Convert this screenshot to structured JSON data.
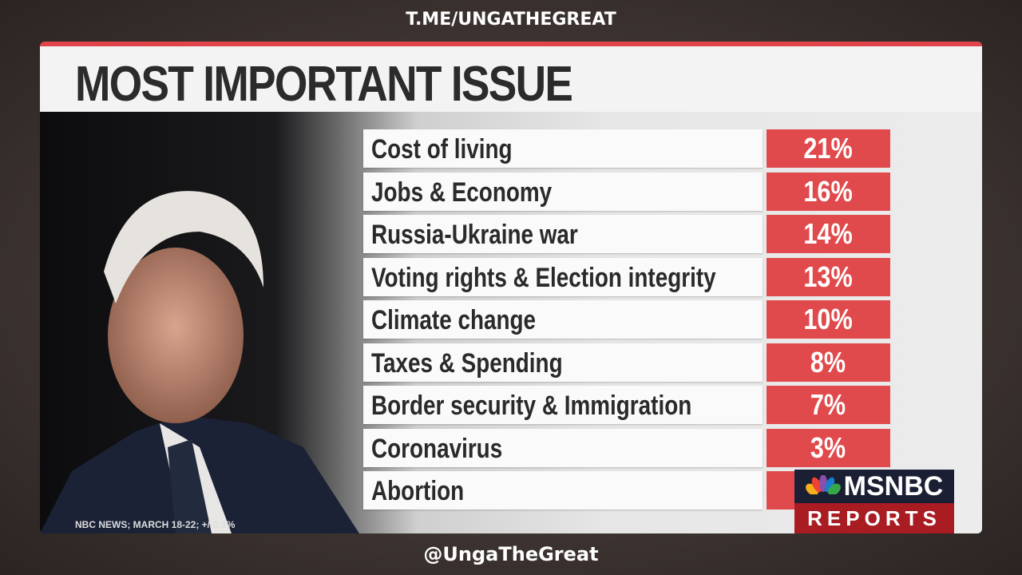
{
  "watermark_top": "T.ME/UNGATHEGREAT",
  "watermark_bottom": "@UngaTheGreat",
  "source": "NBC NEWS; MARCH 18-22; +/-3.1%",
  "logo": {
    "brand": "MSNBC",
    "show": "REPORTS"
  },
  "colors": {
    "accent": "#e04a4c",
    "logo_top": "#1a1f33",
    "logo_bottom": "#a81c22"
  },
  "chart_data": {
    "type": "table",
    "title": "MOST IMPORTANT ISSUE",
    "categories": [
      "Cost of living",
      "Jobs & Economy",
      "Russia-Ukraine war",
      "Voting rights & Election integrity",
      "Climate change",
      "Taxes & Spending",
      "Border security & Immigration",
      "Coronavirus",
      "Abortion"
    ],
    "values": [
      "21%",
      "16%",
      "14%",
      "13%",
      "10%",
      "8%",
      "7%",
      "3%",
      null
    ]
  }
}
